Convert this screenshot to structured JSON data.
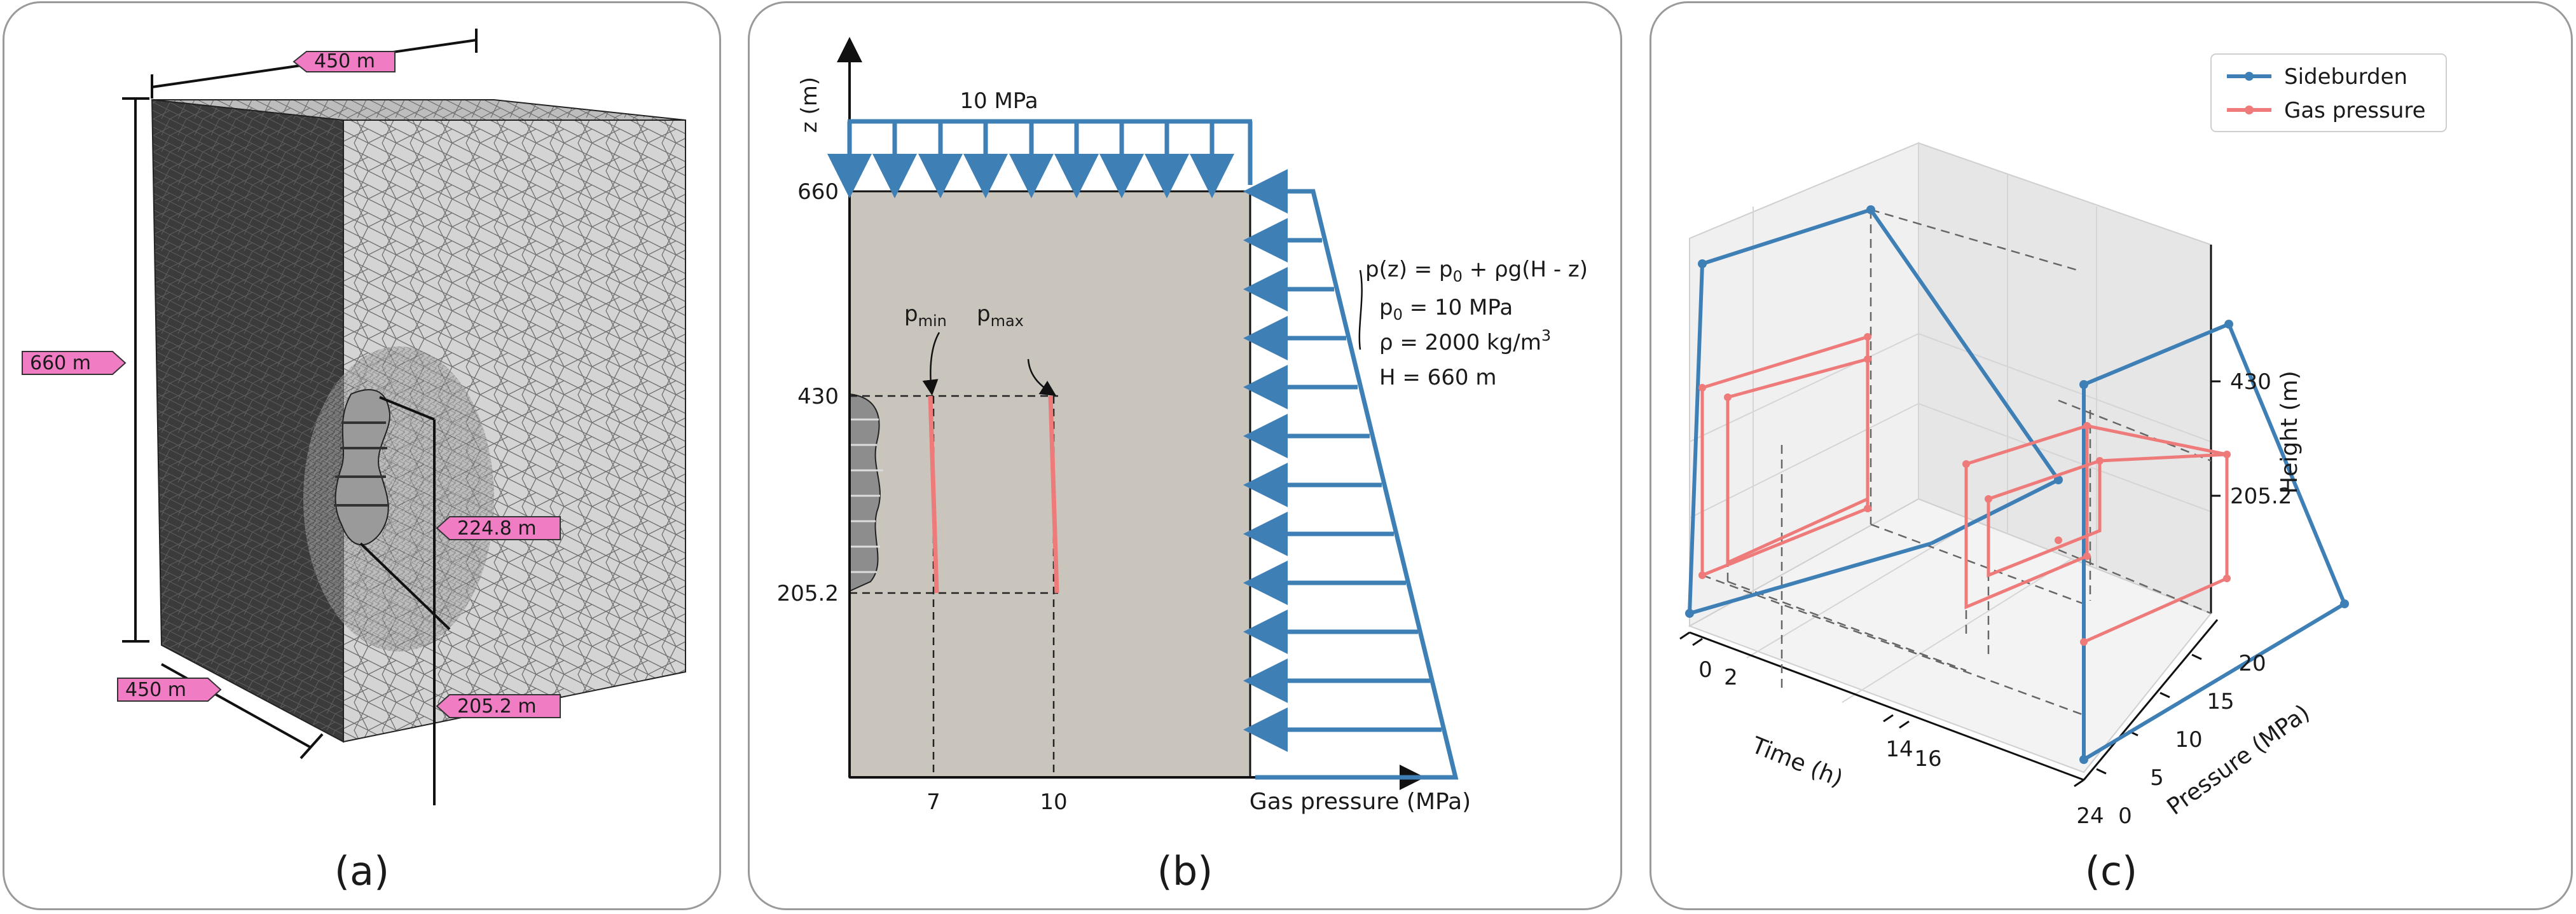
{
  "panel_a": {
    "label": "(a)",
    "dim_width_top": "450 m",
    "dim_height": "660 m",
    "dim_width_bottom": "450 m",
    "dim_cavern_top": "224.8 m",
    "dim_cavern_bottom": "205.2 m",
    "tag_color": "#f07cc4"
  },
  "panel_b": {
    "label": "(b)",
    "z_axis_label": "z (m)",
    "x_axis_label": "Gas pressure (MPa)",
    "top_load_label": "10 MPa",
    "y_ticks": [
      "660",
      "430",
      "205.2"
    ],
    "x_ticks": [
      "7",
      "10"
    ],
    "p_min_base": "p",
    "p_min_sub": "min",
    "p_max_base": "p",
    "p_max_sub": "max",
    "formula_line1": "p(z) = p",
    "formula_line1_sub": "0",
    "formula_line1_rest": " + ρg(H - z)",
    "formula_line2": "p",
    "formula_line2_sub": "0",
    "formula_line2_rest": " = 10 MPa",
    "formula_line3": "ρ = 2000 kg/m",
    "formula_line3_sup": "3",
    "formula_line4": "H = 660 m",
    "load_color": "#3e7fb6",
    "gas_color": "#ee7a7a",
    "domain_color": "#c9c5bc"
  },
  "panel_c": {
    "label": "(c)",
    "legend": [
      {
        "name": "Sideburden",
        "color": "#3e7fb6"
      },
      {
        "name": "Gas pressure",
        "color": "#ee7a7a"
      }
    ],
    "time_label": "Time (h)",
    "pressure_label": "Pressure (MPa)",
    "height_label": "Height (m)",
    "time_ticks": [
      "0",
      "2",
      "14",
      "16",
      "24"
    ],
    "pressure_ticks": [
      "0",
      "5",
      "10",
      "15",
      "20"
    ],
    "height_ticks": [
      "430",
      "205.2"
    ],
    "chart_data": {
      "type": "line",
      "x_label": "Time (h)",
      "y_label": "Pressure (MPa)",
      "z_label": "Height (m)",
      "series": [
        {
          "name": "Sideburden",
          "time": [
            0,
            0,
            24,
            24
          ],
          "pressure": [
            10,
            10,
            20,
            20
          ],
          "height": [
            0,
            660,
            660,
            0
          ]
        },
        {
          "name": "Gas pressure",
          "time": [
            0,
            2,
            14,
            16,
            24
          ],
          "pressure_top": [
            10,
            7,
            7,
            10,
            10
          ],
          "height": [
            205.2,
            430
          ]
        }
      ]
    }
  }
}
